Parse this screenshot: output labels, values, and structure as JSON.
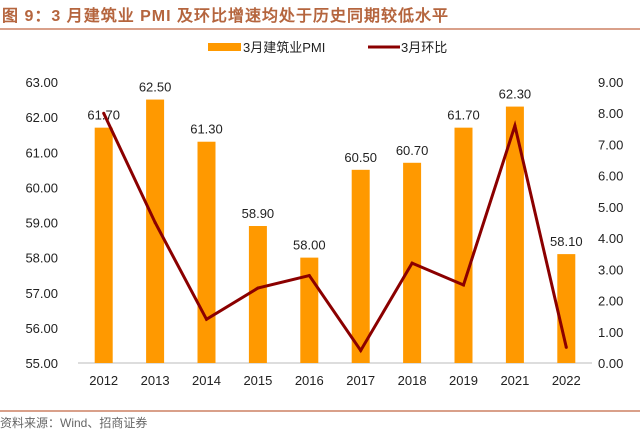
{
  "title": "图 9：3 月建筑业 PMI 及环比增速均处于历史同期较低水平",
  "source": "资料来源：Wind、招商证券",
  "chart_data": {
    "type": "bar+line",
    "categories": [
      "2012",
      "2013",
      "2014",
      "2015",
      "2016",
      "2017",
      "2018",
      "2019",
      "2021",
      "2022"
    ],
    "series": [
      {
        "name": "3月建筑业PMI",
        "type": "bar",
        "axis": "left",
        "color": "#ff9900",
        "values": [
          61.7,
          62.5,
          61.3,
          58.9,
          58.0,
          60.5,
          60.7,
          61.7,
          62.3,
          58.1
        ],
        "labels": [
          "61.70",
          "62.50",
          "61.30",
          "58.90",
          "58.00",
          "60.50",
          "60.70",
          "61.70",
          "62.30",
          "58.10"
        ]
      },
      {
        "name": "3月环比",
        "type": "line",
        "axis": "right",
        "color": "#8b0000",
        "values": [
          8.0,
          4.5,
          1.4,
          2.4,
          2.8,
          0.4,
          3.2,
          2.5,
          7.6,
          0.5
        ]
      }
    ],
    "left_axis": {
      "min": 55,
      "max": 63,
      "ticks": [
        "55.00",
        "56.00",
        "57.00",
        "58.00",
        "59.00",
        "60.00",
        "61.00",
        "62.00",
        "63.00"
      ]
    },
    "right_axis": {
      "min": 0,
      "max": 9,
      "ticks": [
        "0.00",
        "1.00",
        "2.00",
        "3.00",
        "4.00",
        "5.00",
        "6.00",
        "7.00",
        "8.00",
        "9.00"
      ]
    },
    "legend_position": "top-center"
  }
}
